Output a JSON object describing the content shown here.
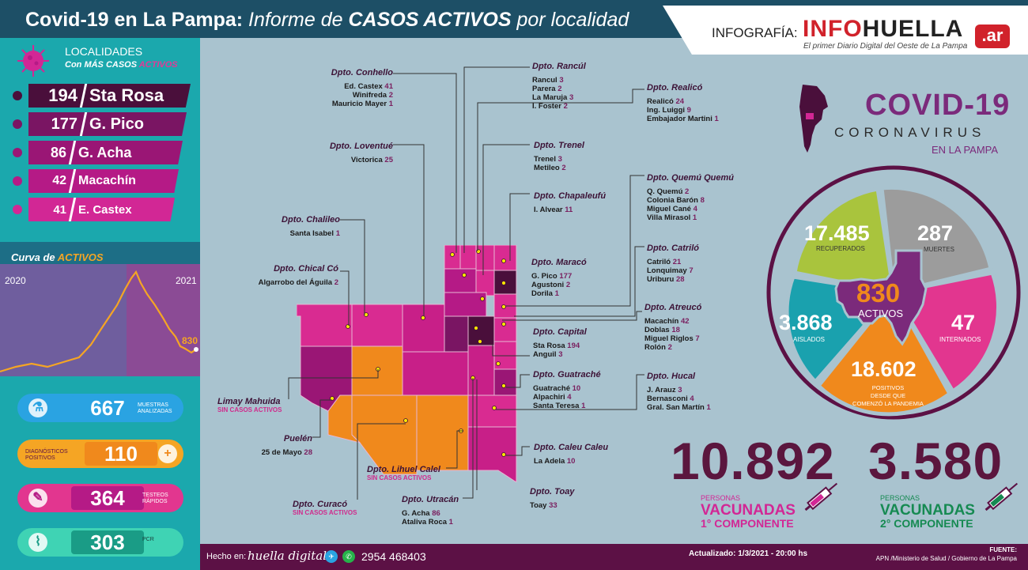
{
  "header": {
    "title_bold": "Covid-19 en La Pampa:",
    "title_italic_pre": "Informe de",
    "title_bold_italic": "CASOS ACTIVOS",
    "title_italic_post": "por localidad",
    "brand_prefix": "INFOGRAFÍA:",
    "brand_info": "INF",
    "brand_o": "O",
    "brand_huella": "HUELLA",
    "brand_ar": ".ar",
    "brand_sub": "El primer Diario Digital del Oeste de La Pampa"
  },
  "localidades": {
    "title": "LOCALIDADES",
    "subtitle_pre": "Con MÁS CASOS",
    "subtitle_hl": "ACTIVOS",
    "items": [
      {
        "count": "194",
        "name": "Sta Rosa",
        "color": "#4a0f3b"
      },
      {
        "count": "177",
        "name": "G. Pico",
        "color": "#7a1563"
      },
      {
        "count": "86",
        "name": "G. Acha",
        "color": "#9a1675"
      },
      {
        "count": "42",
        "name": "Macachín",
        "color": "#b51a86"
      },
      {
        "count": "41",
        "name": "E. Castex",
        "color": "#d22795"
      }
    ]
  },
  "curve": {
    "title_pre": "Curva de",
    "title_hl": "ACTIVOS",
    "year_start": "2020",
    "year_end": "2021",
    "current": "830"
  },
  "tests": [
    {
      "value": "667",
      "label": "MUESTRAS ANALIZADAS",
      "icon": "lab-icon"
    },
    {
      "value": "110",
      "label": "DIAGNÓSTICOS POSITIVOS",
      "icon": "plus-icon"
    },
    {
      "value": "364",
      "label": "TESTEOS RÁPIDOS",
      "icon": "swab-icon"
    },
    {
      "value": "303",
      "label": "PCR",
      "icon": "tube-icon"
    }
  ],
  "departments": {
    "conhello": {
      "name": "Dpto. Conhello",
      "lines": [
        [
          "Ed. Castex",
          "41"
        ],
        [
          "Winifreda",
          "2"
        ],
        [
          "Mauricio Mayer",
          "1"
        ]
      ]
    },
    "rancul": {
      "name": "Dpto. Rancúl",
      "lines": [
        [
          "Rancul",
          "3"
        ],
        [
          "Parera",
          "2"
        ],
        [
          "La Maruja",
          "3"
        ],
        [
          "I. Foster",
          "2"
        ]
      ]
    },
    "realico": {
      "name": "Dpto. Realicó",
      "lines": [
        [
          "Realicó",
          "24"
        ],
        [
          "Ing. Luiggi",
          "9"
        ],
        [
          "Embajador Martini",
          "1"
        ]
      ]
    },
    "loventue": {
      "name": "Dpto. Loventué",
      "lines": [
        [
          "Victorica",
          "25"
        ]
      ]
    },
    "trenel": {
      "name": "Dpto. Trenel",
      "lines": [
        [
          "Trenel",
          "3"
        ],
        [
          "Metileo",
          "2"
        ]
      ]
    },
    "chapaleufu": {
      "name": "Dpto. Chapaleufú",
      "lines": [
        [
          "I. Alvear",
          "11"
        ]
      ]
    },
    "quemu": {
      "name": "Dpto. Quemú Quemú",
      "lines": [
        [
          "Q. Quemú",
          "2"
        ],
        [
          "Colonia Barón",
          "8"
        ],
        [
          "Miguel Cané",
          "4"
        ],
        [
          "Villa Mirasol",
          "1"
        ]
      ]
    },
    "chalileo": {
      "name": "Dpto. Chalileo",
      "lines": [
        [
          "Santa Isabel",
          "1"
        ]
      ]
    },
    "catrilo": {
      "name": "Dpto. Catriló",
      "lines": [
        [
          "Catriló",
          "21"
        ],
        [
          "Lonquimay",
          "7"
        ],
        [
          "Uriburu",
          "28"
        ]
      ]
    },
    "chicalco": {
      "name": "Dpto. Chical Có",
      "lines": [
        [
          "Algarrobo del Águila",
          "2"
        ]
      ]
    },
    "maraco": {
      "name": "Dpto. Maracó",
      "lines": [
        [
          "G. Pico",
          "177"
        ],
        [
          "Agustoni",
          "2"
        ],
        [
          "Dorila",
          "1"
        ]
      ]
    },
    "atreuco": {
      "name": "Dpto. Atreucó",
      "lines": [
        [
          "Macachín",
          "42"
        ],
        [
          "Doblas",
          "18"
        ],
        [
          "Miguel Riglos",
          "7"
        ],
        [
          "Rolón",
          "2"
        ]
      ]
    },
    "capital": {
      "name": "Dpto. Capital",
      "lines": [
        [
          "Sta Rosa",
          "194"
        ],
        [
          "Anguil",
          "3"
        ]
      ]
    },
    "guatrache": {
      "name": "Dpto. Guatraché",
      "lines": [
        [
          "Guatraché",
          "10"
        ],
        [
          "Alpachiri",
          "4"
        ],
        [
          "Santa Teresa",
          "1"
        ]
      ]
    },
    "hucal": {
      "name": "Dpto. Hucal",
      "lines": [
        [
          "J. Arauz",
          "3"
        ],
        [
          "Bernasconi",
          "4"
        ],
        [
          "Gral. San Martín",
          "1"
        ]
      ]
    },
    "limay": {
      "name": "Limay Mahuida",
      "note": "SIN CASOS ACTIVOS"
    },
    "puelen": {
      "name": "Puelén",
      "lines": [
        [
          "25 de Mayo",
          "28"
        ]
      ]
    },
    "caleucaleu": {
      "name": "Dpto. Caleu Caleu",
      "lines": [
        [
          "La Adela",
          "10"
        ]
      ]
    },
    "lihuel": {
      "name": "Dpto. Lihuel Calel",
      "note": "SIN CASOS ACTIVOS"
    },
    "toay": {
      "name": "Dpto. Toay",
      "lines": [
        [
          "Toay",
          "33"
        ]
      ]
    },
    "curaco": {
      "name": "Dpto. Curacó",
      "note": "SIN CASOS ACTIVOS"
    },
    "utracan": {
      "name": "Dpto. Utracán",
      "lines": [
        [
          "G. Acha",
          "86"
        ],
        [
          "Ataliva Roca",
          "1"
        ]
      ]
    }
  },
  "covid": {
    "title": "COVID-19",
    "subtitle": "CORONAVIRUS",
    "place": "EN LA PAMPA",
    "recuperados": {
      "value": "17.485",
      "label": "RECUPERADOS",
      "color": "#a9c43d"
    },
    "muertes": {
      "value": "287",
      "label": "MUERTES",
      "color": "#9c9c9c"
    },
    "internados": {
      "value": "47",
      "label": "INTERNADOS",
      "color": "#e2368f"
    },
    "positivos": {
      "value": "18.602",
      "label1": "POSITIVOS",
      "label2": "DESDE QUE",
      "label3": "COMENZÓ LA PANDEMIA",
      "color": "#f0891c"
    },
    "aislados": {
      "value": "3.868",
      "label": "AISLADOS",
      "color": "#1aa1ae"
    },
    "activos": {
      "value": "830",
      "label": "ACTIVOS",
      "color": "#7b2a7b"
    }
  },
  "vaccines": {
    "first": {
      "value": "10.892",
      "l1": "PERSONAS",
      "l2": "VACUNADAS",
      "l3": "1° COMPONENTE"
    },
    "second": {
      "value": "3.580",
      "l1": "PERSONAS",
      "l2": "VACUNADAS",
      "l3": "2° COMPONENTE"
    }
  },
  "footer": {
    "made_in": "Hecho en:",
    "made_brand": "huella digital",
    "phone": "2954 468403",
    "updated": "Actualizado: 1/3/2021  -  20:00 hs",
    "source_title": "FUENTE:",
    "source": "APN /Ministerio de Salud  / Gobierno de La Pampa"
  }
}
